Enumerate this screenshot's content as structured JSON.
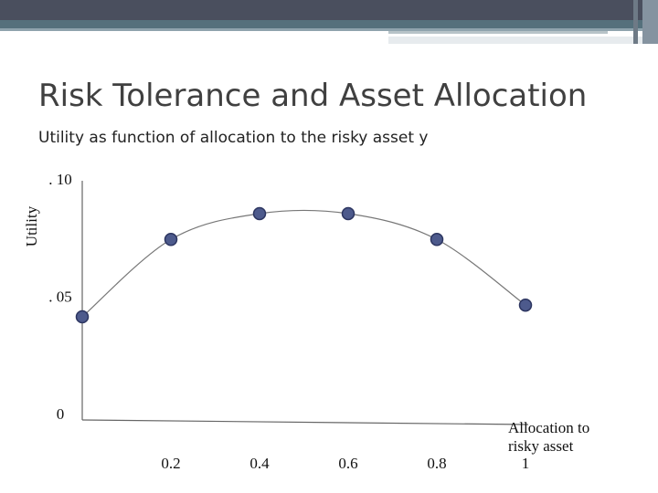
{
  "chart_data": {
    "type": "line",
    "title": "Risk Tolerance and Asset Allocation",
    "subtitle": "Utility as function of allocation to the risky asset y",
    "y_label": "Utility",
    "x_label": "Allocation to risky asset",
    "x": [
      0,
      0.2,
      0.4,
      0.6,
      0.8,
      1
    ],
    "series": [
      {
        "values": [
          0.042,
          0.075,
          0.086,
          0.086,
          0.075,
          0.047
        ],
        "color": "#4d5a8c"
      }
    ],
    "xlim": [
      0,
      1
    ],
    "xticks": [
      0.2,
      0.4,
      0.6,
      0.8,
      1
    ],
    "ylim": [
      0,
      0.1
    ],
    "yticks": [
      {
        "value": 0,
        "label": "0"
      },
      {
        "value": 0.05,
        "label": ". 05"
      },
      {
        "value": 0.1,
        "label": ". 10"
      }
    ],
    "grid": false
  }
}
